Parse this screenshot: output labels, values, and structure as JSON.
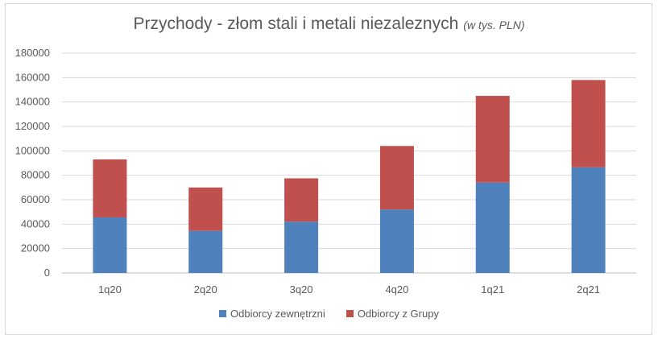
{
  "chart_data": {
    "type": "bar",
    "stacked": true,
    "title": "Przychody - złom stali i metali niezaleznych",
    "subtitle": "(w tys. PLN)",
    "xlabel": "",
    "ylabel": "",
    "categories": [
      "1q20",
      "2q20",
      "3q20",
      "4q20",
      "1q21",
      "2q21"
    ],
    "series": [
      {
        "name": "Odbiorcy zewnętrzni",
        "color": "#4f81bd",
        "values": [
          45500,
          34500,
          42000,
          52000,
          74000,
          86500
        ]
      },
      {
        "name": "Odbiorcy z Grupy",
        "color": "#c0504d",
        "values": [
          47500,
          35500,
          35500,
          52000,
          71000,
          71500
        ]
      }
    ],
    "ylim": [
      0,
      180000
    ],
    "yticks": [
      0,
      20000,
      40000,
      60000,
      80000,
      100000,
      120000,
      140000,
      160000,
      180000
    ],
    "grid": true,
    "legend_position": "bottom"
  }
}
